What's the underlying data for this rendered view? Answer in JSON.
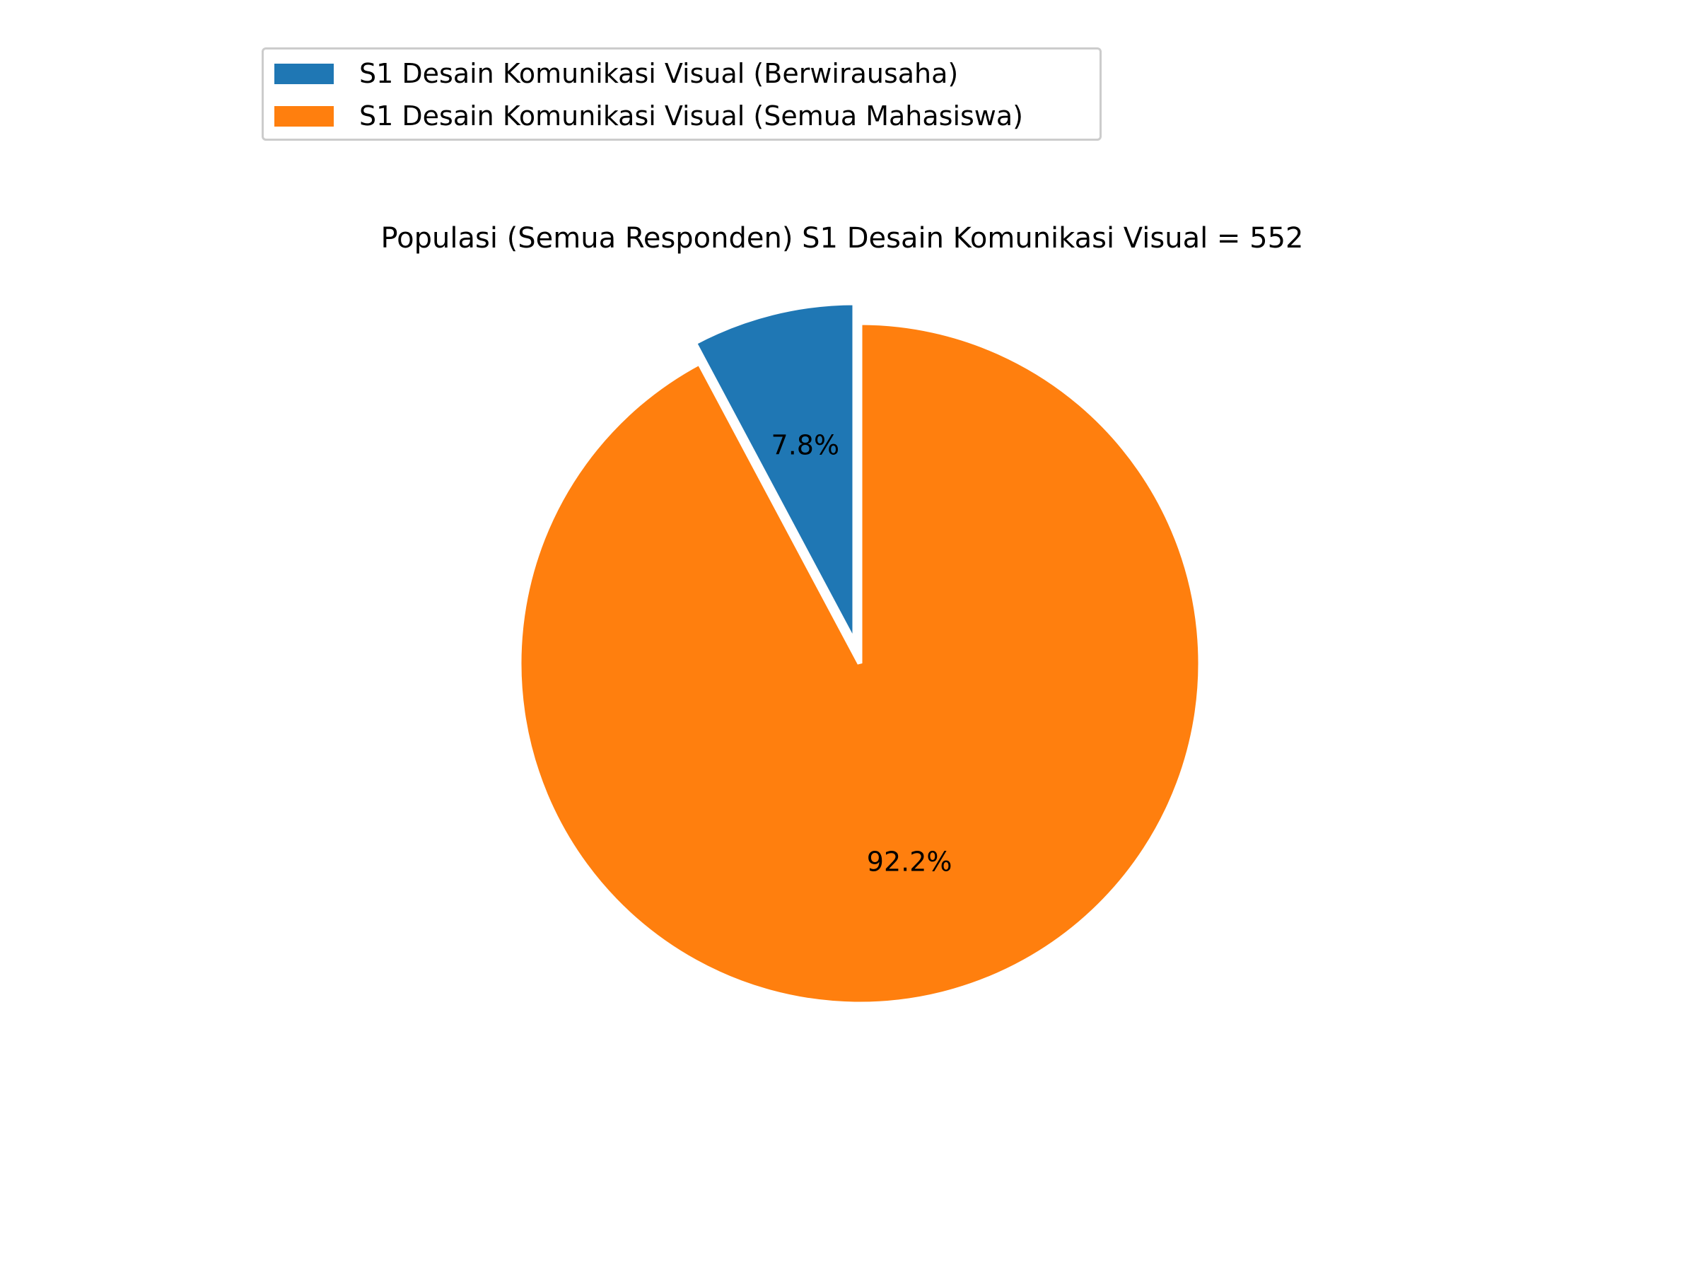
{
  "chart_data": {
    "type": "pie",
    "title": "Populasi (Semua Responden) S1 Desain Komunikasi Visual = 552",
    "slices": [
      {
        "label": "S1 Desain Komunikasi Visual (Berwirausaha)",
        "value": 7.8,
        "display": "7.8%",
        "color": "#1f77b4",
        "exploded": true
      },
      {
        "label": "S1 Desain Komunikasi Visual (Semua Mahasiswa)",
        "value": 92.2,
        "display": "92.2%",
        "color": "#ff7f0e",
        "exploded": false
      }
    ],
    "legend_placement": "upper-left",
    "start_angle": "top",
    "direction": "counterclockwise"
  }
}
